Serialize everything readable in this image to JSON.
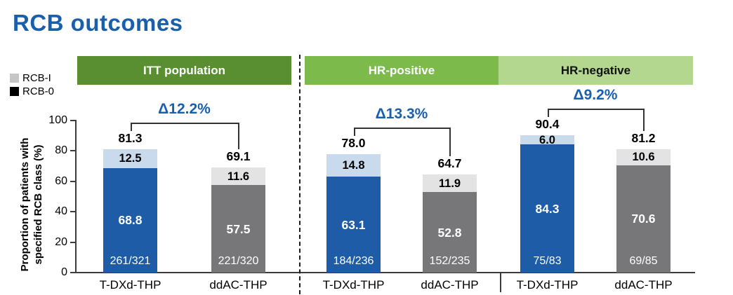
{
  "page_title": "RCB outcomes",
  "legend": {
    "items": [
      {
        "label": "RCB-I",
        "color": "#c6c6c6"
      },
      {
        "label": "RCB-0",
        "color": "#000000"
      }
    ]
  },
  "y_axis": {
    "label": "Proportion of patients with specified RCB class (%)",
    "ticks": [
      0,
      20,
      40,
      60,
      80,
      100
    ],
    "max": 100
  },
  "chart_data": {
    "type": "bar",
    "stacked": true,
    "title": "RCB outcomes",
    "ylabel": "Proportion of patients with specified RCB class (%)",
    "ylim": [
      0,
      100
    ],
    "grid": false,
    "legend_position": "upper-left",
    "series_legend": [
      "RCB-I",
      "RCB-0"
    ],
    "accent_color": "#1a5fac",
    "groups": [
      {
        "name": "ITT population",
        "header_color": "#5a8f31",
        "header_text_color": "#ffffff",
        "delta_label": "Δ12.2%",
        "bars": [
          {
            "arm": "T-DXd-THP",
            "total_label": "81.3",
            "fraction": "261/321",
            "segments": {
              "rcb0": {
                "value": 68.8,
                "label": "68.8",
                "color": "#1e5ca7",
                "text_color": "#ffffff"
              },
              "rcb1": {
                "value": 12.5,
                "label": "12.5",
                "color": "#c9daed",
                "text_color": "#000000"
              }
            }
          },
          {
            "arm": "ddAC-THP",
            "total_label": "69.1",
            "fraction": "221/320",
            "segments": {
              "rcb0": {
                "value": 57.5,
                "label": "57.5",
                "color": "#77777a",
                "text_color": "#ffffff"
              },
              "rcb1": {
                "value": 11.6,
                "label": "11.6",
                "color": "#e3e3e3",
                "text_color": "#000000"
              }
            }
          }
        ]
      },
      {
        "name": "HR-positive",
        "header_color": "#7cbb4b",
        "header_text_color": "#ffffff",
        "delta_label": "Δ13.3%",
        "bars": [
          {
            "arm": "T-DXd-THP",
            "total_label": "78.0",
            "fraction": "184/236",
            "segments": {
              "rcb0": {
                "value": 63.1,
                "label": "63.1",
                "color": "#1e5ca7",
                "text_color": "#ffffff"
              },
              "rcb1": {
                "value": 14.8,
                "label": "14.8",
                "color": "#c9daed",
                "text_color": "#000000"
              }
            }
          },
          {
            "arm": "ddAC-THP",
            "total_label": "64.7",
            "fraction": "152/235",
            "segments": {
              "rcb0": {
                "value": 52.8,
                "label": "52.8",
                "color": "#77777a",
                "text_color": "#ffffff"
              },
              "rcb1": {
                "value": 11.9,
                "label": "11.9",
                "color": "#e3e3e3",
                "text_color": "#000000"
              }
            }
          }
        ]
      },
      {
        "name": "HR-negative",
        "header_color": "#b4d78f",
        "header_text_color": "#111111",
        "delta_label": "Δ9.2%",
        "bars": [
          {
            "arm": "T-DXd-THP",
            "total_label": "90.4",
            "fraction": "75/83",
            "segments": {
              "rcb0": {
                "value": 84.3,
                "label": "84.3",
                "color": "#1e5ca7",
                "text_color": "#ffffff"
              },
              "rcb1": {
                "value": 6.0,
                "label": "6.0",
                "color": "#c9daed",
                "text_color": "#000000"
              }
            }
          },
          {
            "arm": "ddAC-THP",
            "total_label": "81.2",
            "fraction": "69/85",
            "segments": {
              "rcb0": {
                "value": 70.6,
                "label": "70.6",
                "color": "#77777a",
                "text_color": "#ffffff"
              },
              "rcb1": {
                "value": 10.6,
                "label": "10.6",
                "color": "#e3e3e3",
                "text_color": "#000000"
              }
            }
          }
        ]
      }
    ]
  }
}
